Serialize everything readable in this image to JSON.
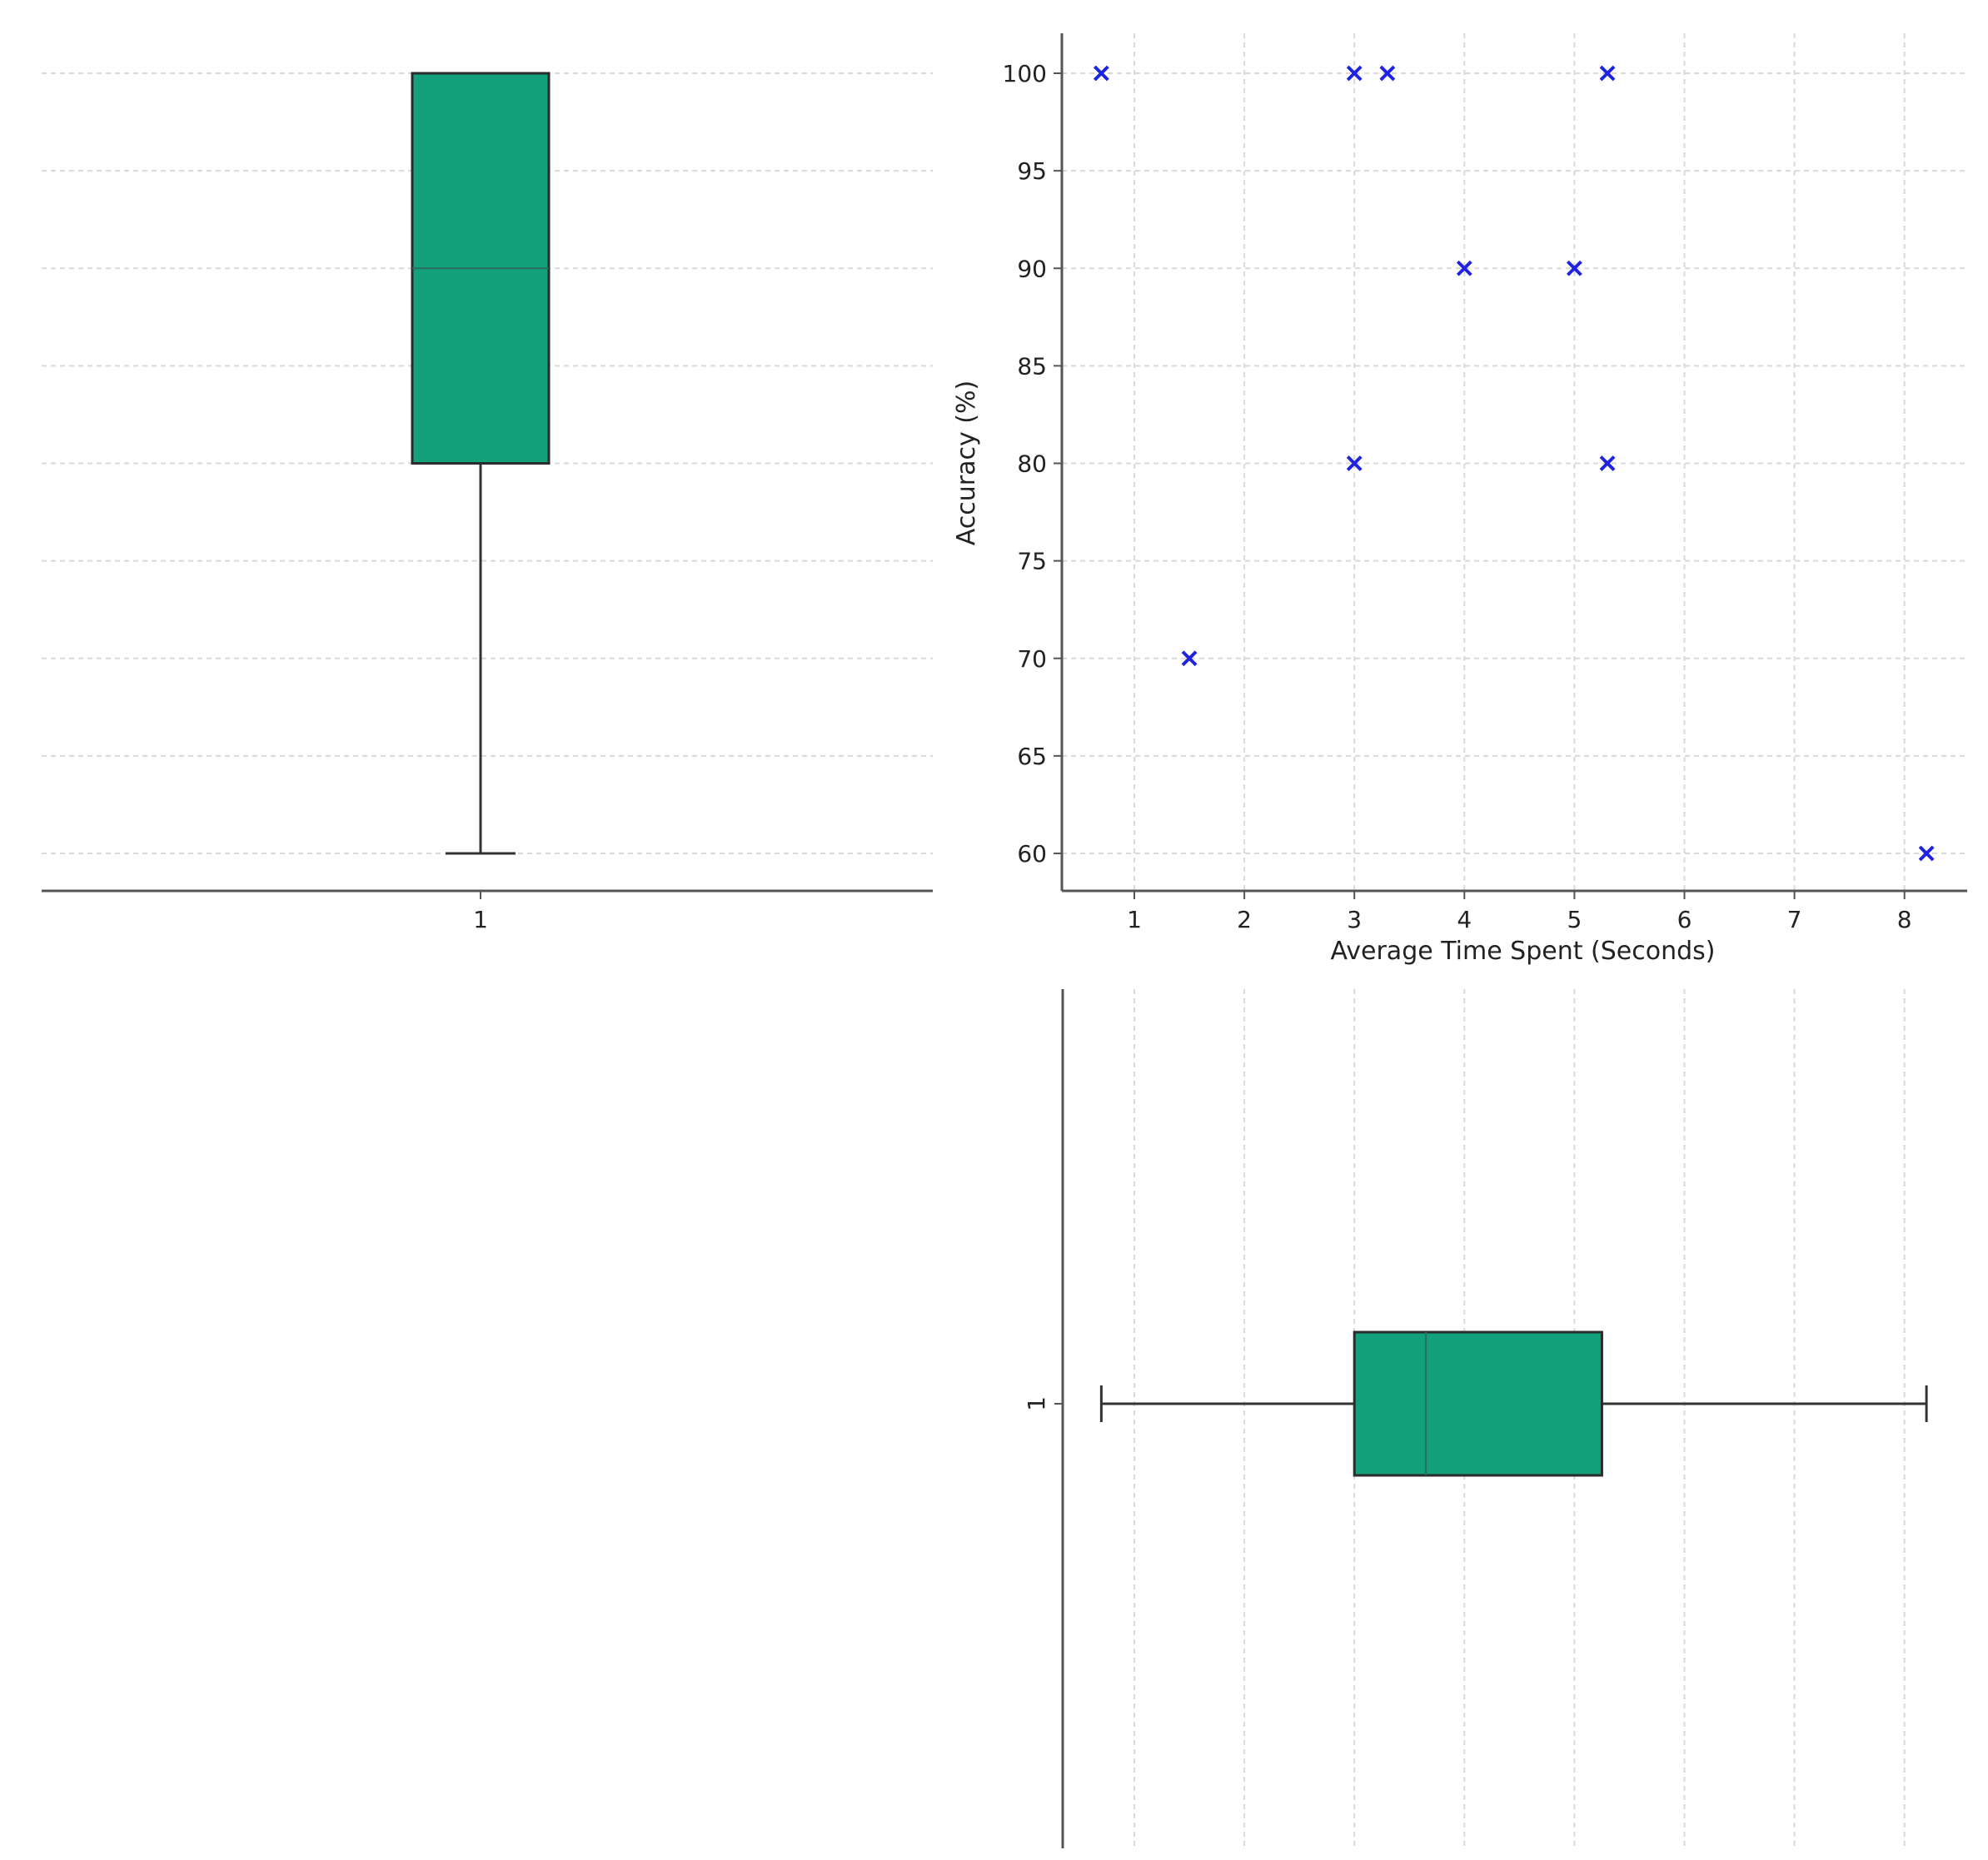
{
  "chart_data": [
    {
      "type": "box",
      "orientation": "vertical",
      "title": "",
      "xlabel": "",
      "ylabel": "",
      "categories": [
        "1"
      ],
      "ylim": [
        58,
        102
      ],
      "grid": "horizontal dashed",
      "box": {
        "whisker_low": 60,
        "q1": 80,
        "median": 90,
        "q3": 100,
        "whisker_high": 100
      },
      "colors": {
        "box_fill": "#13a17d",
        "box_edge": "#2b2b2b"
      }
    },
    {
      "type": "scatter",
      "title": "",
      "xlabel": "Average Time Spent (Seconds)",
      "ylabel": "Accuracy (%)",
      "xlim": [
        0.4,
        8.6
      ],
      "ylim": [
        58,
        102
      ],
      "x_ticks": [
        1,
        2,
        3,
        4,
        5,
        6,
        7,
        8
      ],
      "y_ticks": [
        60,
        65,
        70,
        75,
        80,
        85,
        90,
        95,
        100
      ],
      "grid": "dashed",
      "marker": "x",
      "points": [
        {
          "x": 0.7,
          "y": 100
        },
        {
          "x": 3.0,
          "y": 100
        },
        {
          "x": 3.3,
          "y": 100
        },
        {
          "x": 5.3,
          "y": 100
        },
        {
          "x": 4.0,
          "y": 90
        },
        {
          "x": 5.0,
          "y": 90
        },
        {
          "x": 3.0,
          "y": 80
        },
        {
          "x": 5.3,
          "y": 80
        },
        {
          "x": 1.5,
          "y": 70
        },
        {
          "x": 8.2,
          "y": 60
        }
      ],
      "colors": {
        "marker": "#1f22e0"
      }
    },
    {
      "type": "box",
      "orientation": "horizontal",
      "title": "",
      "xlabel": "",
      "ylabel": "",
      "categories": [
        "1"
      ],
      "xlim": [
        0.4,
        8.6
      ],
      "grid": "vertical dashed",
      "box": {
        "whisker_low": 0.7,
        "q1": 3.0,
        "median": 3.65,
        "q3": 5.25,
        "whisker_high": 8.2
      },
      "colors": {
        "box_fill": "#13a17d",
        "box_edge": "#2b2b2b"
      }
    }
  ]
}
